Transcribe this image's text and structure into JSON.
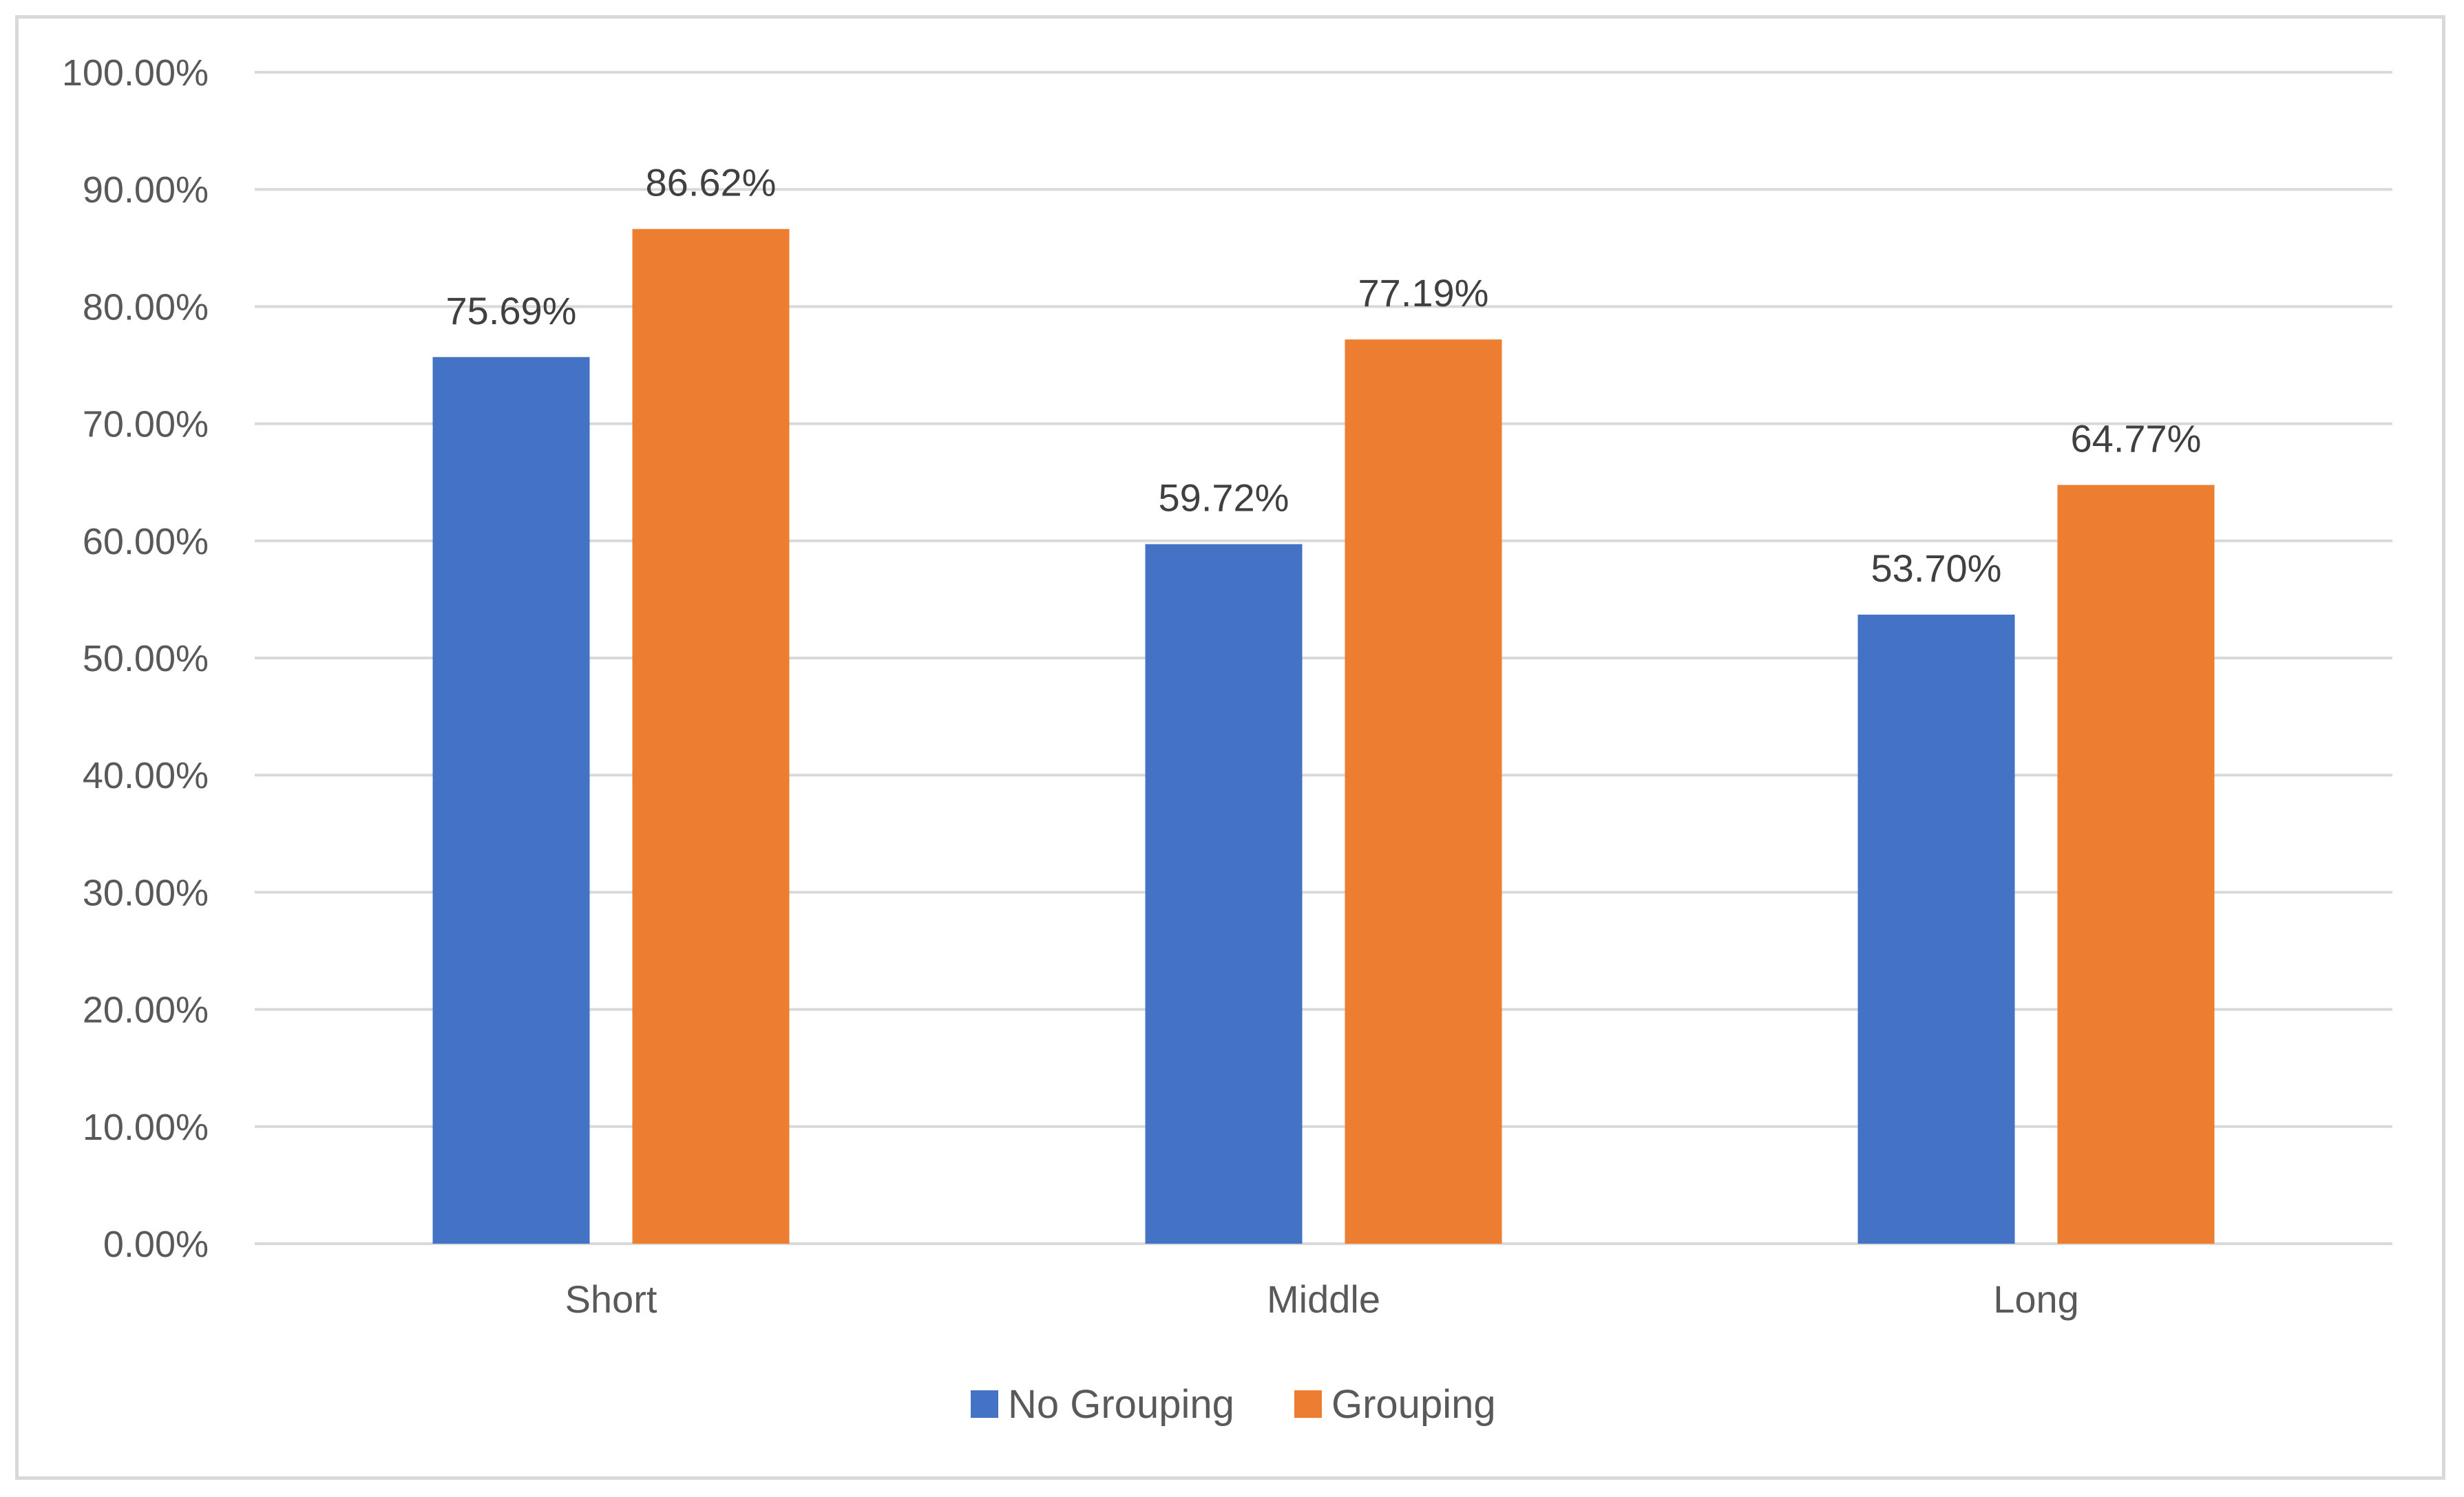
{
  "chart_data": {
    "type": "bar",
    "categories": [
      "Short",
      "Middle",
      "Long"
    ],
    "series": [
      {
        "name": "No Grouping",
        "color": "#4472c4",
        "values": [
          75.69,
          59.72,
          53.7
        ],
        "labels": [
          "75.69%",
          "59.72%",
          "53.70%"
        ]
      },
      {
        "name": "Grouping",
        "color": "#ed7d31",
        "values": [
          86.62,
          77.19,
          64.77
        ],
        "labels": [
          "86.62%",
          "77.19%",
          "64.77%"
        ]
      }
    ],
    "ylim": [
      0,
      100
    ],
    "yticks": [
      0,
      10,
      20,
      30,
      40,
      50,
      60,
      70,
      80,
      90,
      100
    ],
    "ytick_labels": [
      "0.00%",
      "10.00%",
      "20.00%",
      "30.00%",
      "40.00%",
      "50.00%",
      "60.00%",
      "70.00%",
      "80.00%",
      "90.00%",
      "100.00%"
    ],
    "grid": true,
    "legend_position": "bottom",
    "title": "",
    "xlabel": "",
    "ylabel": ""
  }
}
